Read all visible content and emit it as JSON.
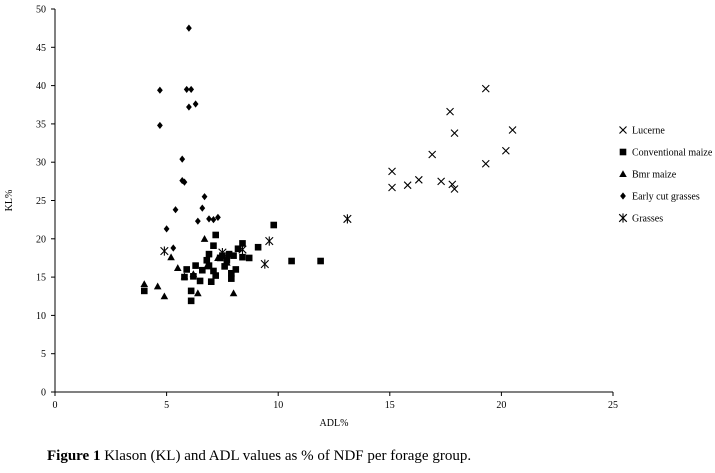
{
  "caption": {
    "label": "Figure 1",
    "text": " Klason (KL) and ADL values as % of NDF per forage group."
  },
  "chart_data": {
    "type": "scatter",
    "xlabel": "ADL%",
    "ylabel": "KL%",
    "xlim": [
      0,
      25
    ],
    "ylim": [
      0,
      50
    ],
    "xticks": [
      0,
      5,
      10,
      15,
      20,
      25
    ],
    "yticks": [
      0,
      5,
      10,
      15,
      20,
      25,
      30,
      35,
      40,
      45,
      50
    ],
    "grid": false,
    "legend_position": "right",
    "series": [
      {
        "name": "Lucerne",
        "marker": "x",
        "points": [
          [
            15.1,
            28.8
          ],
          [
            15.1,
            26.7
          ],
          [
            15.8,
            27.0
          ],
          [
            16.3,
            27.7
          ],
          [
            16.9,
            31.0
          ],
          [
            17.3,
            27.5
          ],
          [
            17.7,
            36.6
          ],
          [
            17.8,
            27.1
          ],
          [
            17.9,
            26.5
          ],
          [
            17.9,
            33.8
          ],
          [
            19.3,
            39.6
          ],
          [
            19.3,
            29.8
          ],
          [
            20.2,
            31.5
          ],
          [
            20.5,
            34.2
          ]
        ]
      },
      {
        "name": "Conventional maize",
        "marker": "square",
        "points": [
          [
            4.0,
            13.2
          ],
          [
            5.8,
            15.0
          ],
          [
            5.9,
            16.0
          ],
          [
            6.1,
            11.9
          ],
          [
            6.1,
            13.2
          ],
          [
            6.2,
            15.1
          ],
          [
            6.3,
            16.5
          ],
          [
            6.5,
            14.5
          ],
          [
            6.6,
            15.9
          ],
          [
            6.8,
            17.2
          ],
          [
            6.9,
            18.0
          ],
          [
            6.9,
            16.5
          ],
          [
            7.0,
            14.4
          ],
          [
            7.1,
            15.8
          ],
          [
            7.1,
            19.1
          ],
          [
            7.2,
            20.5
          ],
          [
            7.2,
            15.2
          ],
          [
            7.4,
            17.5
          ],
          [
            7.5,
            17.8
          ],
          [
            7.6,
            16.4
          ],
          [
            7.7,
            17.2
          ],
          [
            7.8,
            18.0
          ],
          [
            7.9,
            15.5
          ],
          [
            7.9,
            14.8
          ],
          [
            8.0,
            17.8
          ],
          [
            8.1,
            16.0
          ],
          [
            8.2,
            18.7
          ],
          [
            8.4,
            19.4
          ],
          [
            8.4,
            17.6
          ],
          [
            8.7,
            17.5
          ],
          [
            9.1,
            18.9
          ],
          [
            9.8,
            21.8
          ],
          [
            10.6,
            17.1
          ],
          [
            11.9,
            17.1
          ]
        ]
      },
      {
        "name": "Bmr maize",
        "marker": "triangle",
        "points": [
          [
            4.0,
            14.1
          ],
          [
            4.6,
            13.8
          ],
          [
            4.9,
            12.5
          ],
          [
            5.2,
            17.6
          ],
          [
            5.5,
            16.2
          ],
          [
            5.8,
            15.1
          ],
          [
            6.2,
            15.4
          ],
          [
            6.4,
            12.9
          ],
          [
            6.7,
            20.0
          ],
          [
            6.8,
            16.4
          ],
          [
            7.3,
            17.5
          ],
          [
            7.7,
            16.9
          ],
          [
            8.0,
            12.9
          ]
        ]
      },
      {
        "name": "Early cut grasses",
        "marker": "diamond",
        "points": [
          [
            4.7,
            39.4
          ],
          [
            4.7,
            34.8
          ],
          [
            5.0,
            21.3
          ],
          [
            5.3,
            18.8
          ],
          [
            5.4,
            23.8
          ],
          [
            5.7,
            30.4
          ],
          [
            5.7,
            27.6
          ],
          [
            5.8,
            27.4
          ],
          [
            5.9,
            39.5
          ],
          [
            6.0,
            47.5
          ],
          [
            6.0,
            37.2
          ],
          [
            6.1,
            39.5
          ],
          [
            6.3,
            37.6
          ],
          [
            6.4,
            22.3
          ],
          [
            6.6,
            24.0
          ],
          [
            6.7,
            25.5
          ],
          [
            6.9,
            22.6
          ],
          [
            7.1,
            22.5
          ],
          [
            7.3,
            22.8
          ]
        ]
      },
      {
        "name": "Grasses",
        "marker": "asterisk",
        "points": [
          [
            4.9,
            18.4
          ],
          [
            7.5,
            18.2
          ],
          [
            8.4,
            18.6
          ],
          [
            9.4,
            16.7
          ],
          [
            9.6,
            19.7
          ],
          [
            13.1,
            22.6
          ]
        ]
      }
    ]
  }
}
